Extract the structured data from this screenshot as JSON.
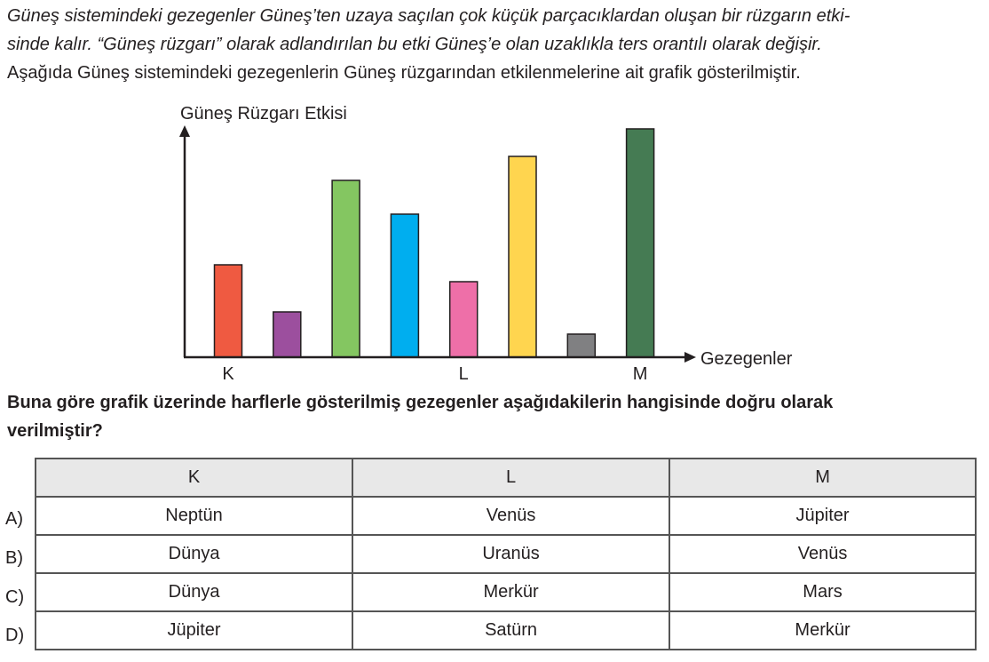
{
  "intro": {
    "italic_line1": "Güneş sistemindeki gezegenler Güneş’ten uzaya saçılan çok küçük parçacıklardan oluşan bir rüzgarın etki-",
    "italic_line2": "sinde kalır. “Güneş rüzgarı” olarak adlandırılan bu etki Güneş’e olan uzaklıkla ters orantılı olarak değişir.",
    "line3": "Aşağıda Güneş sistemindeki gezegenlerin Güneş rüzgarından etkilenmelerine ait grafik gösterilmiştir."
  },
  "chart_data": {
    "type": "bar",
    "ylabel": "Güneş Rüzgarı Etkisi",
    "xlabel": "Gezegenler",
    "categories": [
      "K",
      "",
      "",
      "",
      "L",
      "",
      "",
      "M"
    ],
    "values": [
      104,
      51,
      199,
      161,
      85,
      226,
      26,
      257
    ],
    "colors": [
      "#ef5a41",
      "#9c4f9e",
      "#84c661",
      "#00aeef",
      "#ee6fa8",
      "#ffd54f",
      "#808082",
      "#457b53"
    ],
    "ylim": [
      0,
      270
    ],
    "grid": false,
    "legend": "none"
  },
  "question": {
    "line1": "Buna göre grafik üzerinde harflerle gösterilmiş gezegenler aşağıdakilerin hangisinde doğru olarak",
    "line2": "verilmiştir?"
  },
  "table": {
    "headers": [
      "K",
      "L",
      "M"
    ],
    "rows": [
      {
        "label": "A)",
        "cells": [
          "Neptün",
          "Venüs",
          "Jüpiter"
        ]
      },
      {
        "label": "B)",
        "cells": [
          "Dünya",
          "Uranüs",
          "Venüs"
        ]
      },
      {
        "label": "C)",
        "cells": [
          "Dünya",
          "Merkür",
          "Mars"
        ]
      },
      {
        "label": "D)",
        "cells": [
          "Jüpiter",
          "Satürn",
          "Merkür"
        ]
      }
    ]
  }
}
